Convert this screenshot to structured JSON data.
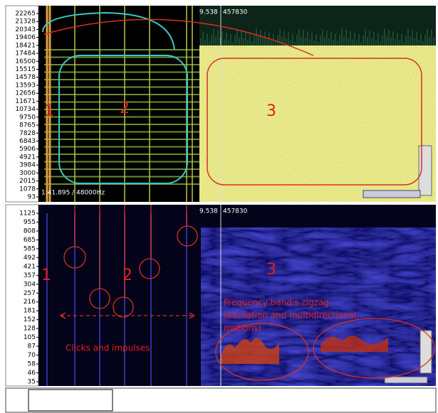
{
  "top_panel": {
    "freq_labels": [
      22265,
      21328,
      20343,
      19406,
      18421,
      17484,
      16500,
      15515,
      14578,
      13593,
      12656,
      11671,
      10734,
      9750,
      8765,
      7828,
      6843,
      5906,
      4921,
      3984,
      3000,
      2015,
      1078,
      93
    ],
    "time": "9.538",
    "samples": "457830",
    "position": "1:41.895 / 48000Hz",
    "annotations": [
      "1",
      "2",
      "3"
    ]
  },
  "bottom_panel": {
    "freq_labels": [
      1125,
      955,
      808,
      685,
      585,
      492,
      421,
      357,
      304,
      257,
      216,
      181,
      152,
      128,
      105,
      87,
      70,
      58,
      46,
      35
    ],
    "time": "9.538",
    "samples": "457830",
    "annotations": [
      "1",
      "2",
      "3"
    ],
    "zigzag_note": [
      "Frequency band's zigzag",
      "(oscilation and multidirectional",
      "motions)"
    ],
    "clicks_note": "Clicks and impulses"
  }
}
